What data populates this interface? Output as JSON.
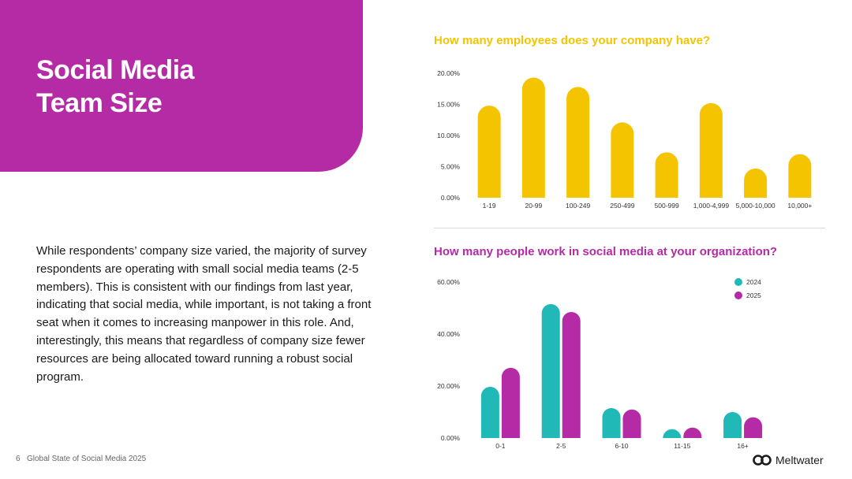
{
  "page": {
    "title": "Social Media\nTeam Size",
    "body": "While respondents’ company size varied, the majority of survey respondents are operating with small social media teams (2-5 members). This is consistent with our findings from last year, indicating that social media, while important, is not taking a front seat when it comes to increasing manpower in this role. And, interestingly, this means that regardless of company size fewer resources are being allocated toward running a robust social program.",
    "footer_page": "6",
    "footer_report": "Global State of Social Media 2025",
    "logo_text": "Meltwater",
    "colors": {
      "accent": "#B52AA5",
      "yellow": "#F5C400",
      "teal": "#21B8B8"
    }
  },
  "chart_data": [
    {
      "type": "bar",
      "title": "How many employees does your company have?",
      "categories": [
        "1-19",
        "20-99",
        "100-249",
        "250-499",
        "500-999",
        "1,000-4,999",
        "5,000-10,000",
        "10,000+"
      ],
      "values": [
        14.8,
        19.3,
        17.8,
        12.1,
        7.3,
        15.2,
        4.7,
        7.0
      ],
      "yticks": [
        "0.00%",
        "5.00%",
        "10.00%",
        "15.00%",
        "20.00%"
      ],
      "ylim": [
        0,
        20
      ],
      "color": "#F5C400",
      "grid": false,
      "legend": "none"
    },
    {
      "type": "bar",
      "title": "How many people work in social media at your organization?",
      "categories": [
        "0-1",
        "2-5",
        "6-10",
        "11-15",
        "16+"
      ],
      "series": [
        {
          "name": "2024",
          "values": [
            19.7,
            51.5,
            11.5,
            3.4,
            10.0
          ],
          "color": "#21B8B8"
        },
        {
          "name": "2025",
          "values": [
            27.0,
            48.5,
            11.0,
            4.0,
            8.0
          ],
          "color": "#B52AA5"
        }
      ],
      "yticks": [
        "0.00%",
        "20.00%",
        "40.00%",
        "60.00%"
      ],
      "ylim": [
        0,
        60
      ],
      "grid": false,
      "legend": "top-right"
    }
  ]
}
